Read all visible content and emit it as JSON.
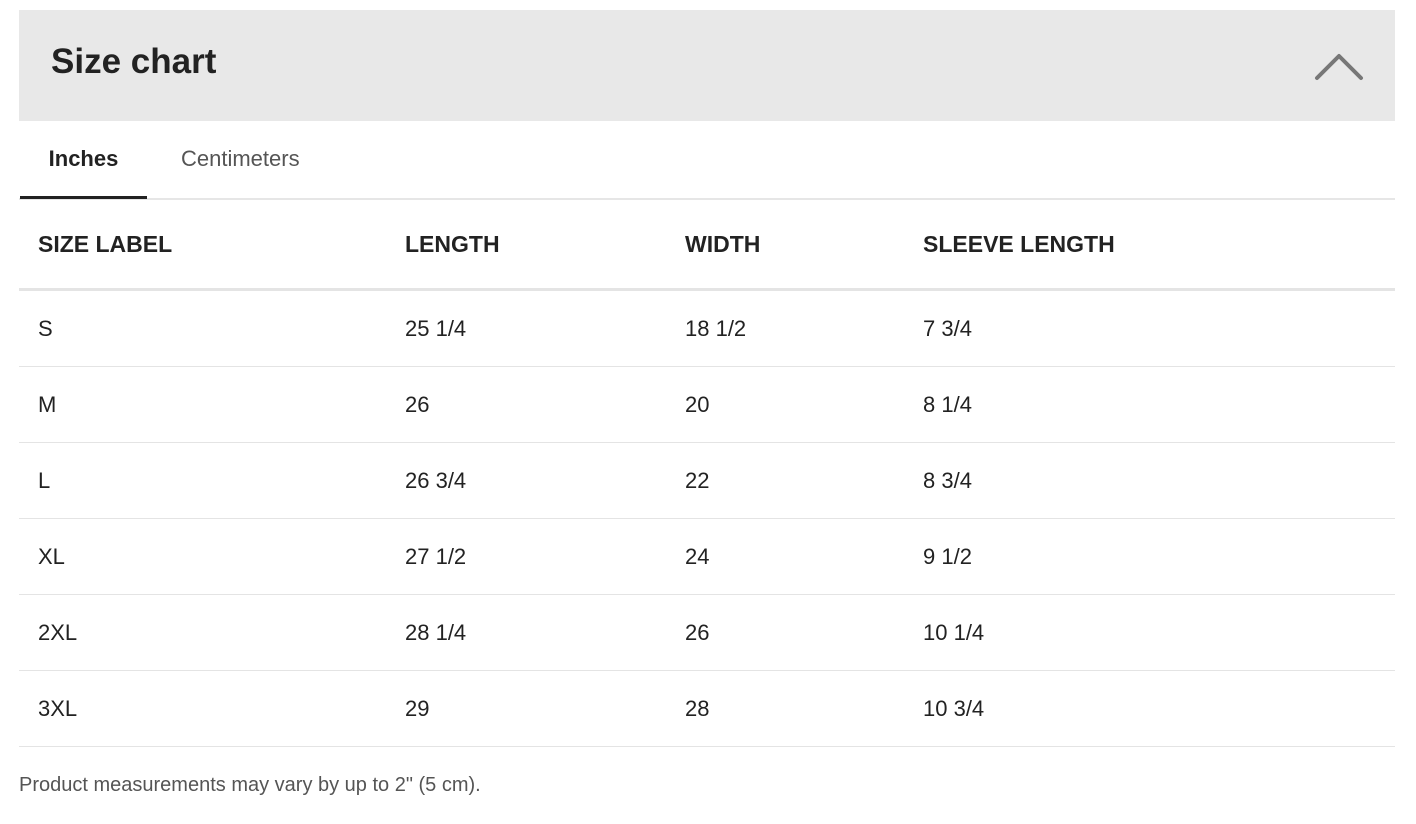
{
  "header": {
    "title": "Size chart",
    "toggle_icon": "chevron-up-icon"
  },
  "tabs": [
    {
      "label": "Inches",
      "active": true
    },
    {
      "label": "Centimeters",
      "active": false
    }
  ],
  "table": {
    "columns": [
      "SIZE LABEL",
      "LENGTH",
      "WIDTH",
      "SLEEVE LENGTH"
    ],
    "rows": [
      [
        "S",
        "25 1/4",
        "18 1/2",
        "7 3/4"
      ],
      [
        "M",
        "26",
        "20",
        "8 1/4"
      ],
      [
        "L",
        "26 3/4",
        "22",
        "8 3/4"
      ],
      [
        "XL",
        "27 1/2",
        "24",
        "9 1/2"
      ],
      [
        "2XL",
        "28 1/4",
        "26",
        "10 1/4"
      ],
      [
        "3XL",
        "29",
        "28",
        "10 3/4"
      ]
    ]
  },
  "footnote": "Product measurements may vary by up to 2\" (5 cm)."
}
